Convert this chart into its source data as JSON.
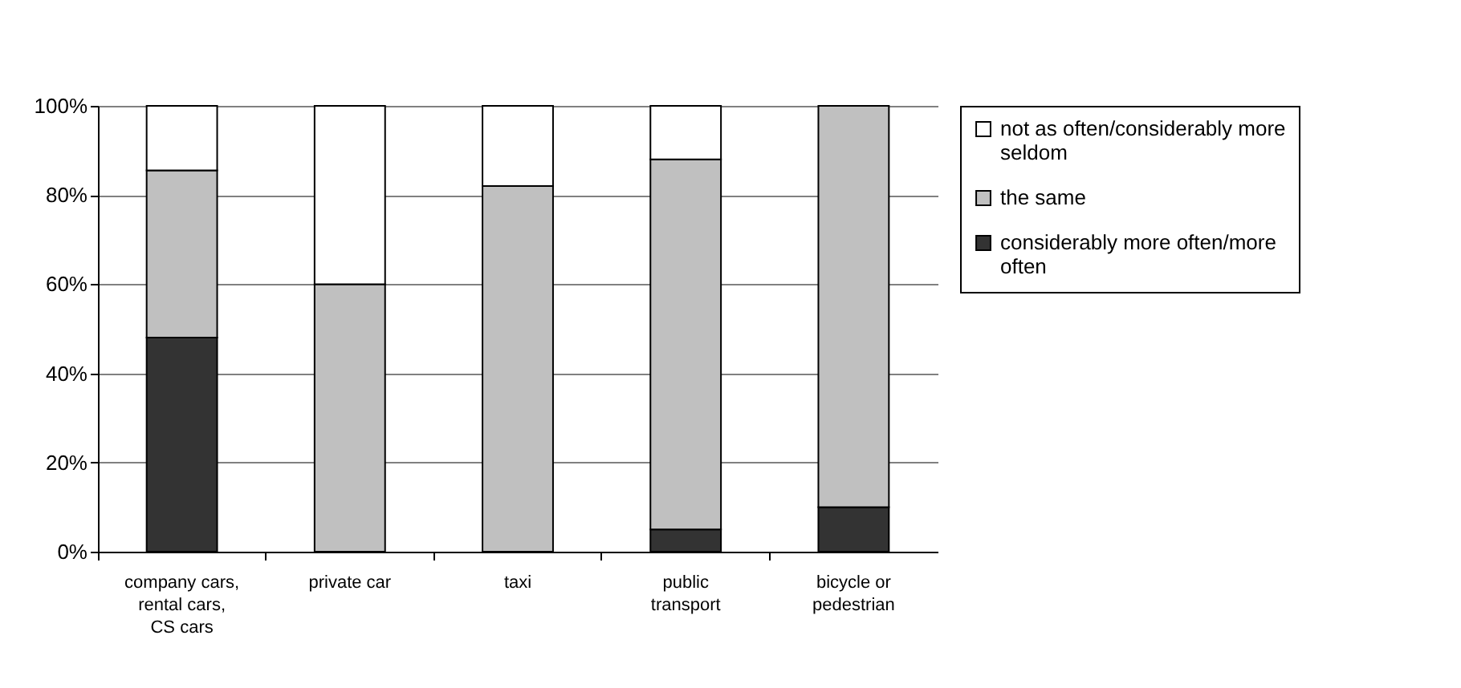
{
  "chart_data": {
    "type": "bar",
    "stacked": true,
    "categories": [
      "company cars, rental cars, CS cars",
      "private car",
      "taxi",
      "public transport",
      "bicycle or pedestrian"
    ],
    "series": [
      {
        "name": "considerably more often/more often",
        "color": "#333333",
        "values": [
          48,
          0,
          0,
          5,
          10
        ]
      },
      {
        "name": "the same",
        "color": "#c0c0c0",
        "values": [
          37.5,
          60,
          82,
          83,
          90
        ]
      },
      {
        "name": "not as often/considerably more seldom",
        "color": "#ffffff",
        "values": [
          14.5,
          40,
          18,
          12,
          0
        ]
      }
    ],
    "ylim": [
      0,
      100
    ],
    "yticks": [
      {
        "value": 0,
        "label": "0%"
      },
      {
        "value": 20,
        "label": "20%"
      },
      {
        "value": 40,
        "label": "40%"
      },
      {
        "value": 60,
        "label": "60%"
      },
      {
        "value": 80,
        "label": "80%"
      },
      {
        "value": 100,
        "label": "100%"
      }
    ],
    "grid": "y",
    "legend": "right"
  }
}
